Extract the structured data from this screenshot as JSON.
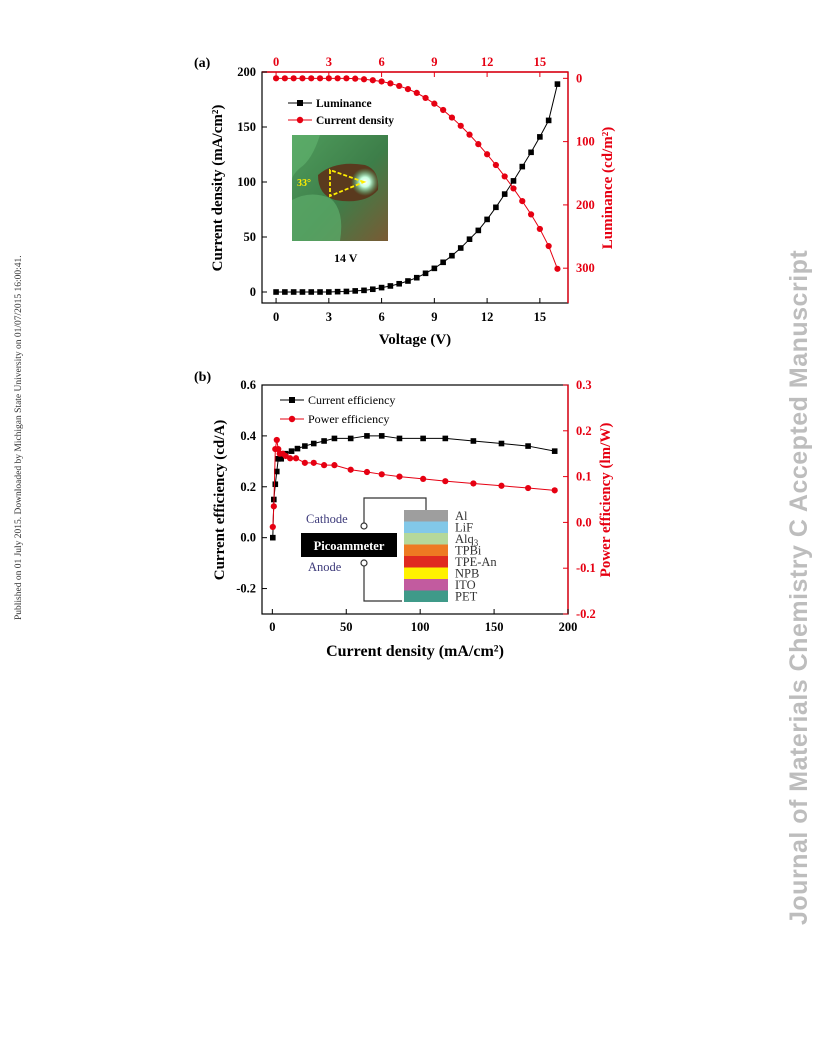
{
  "side_note": "Published on 01 July 2015. Downloaded by Michigan State University on 01/07/2015 16:00:41.",
  "watermark": "Journal of Materials Chemistry C Accepted Manuscript",
  "colors": {
    "black_series": "#000000",
    "red_series": "#e60012"
  },
  "chart_data": [
    {
      "panel": "(a)",
      "type": "scatter",
      "xlabel": "Voltage (V)",
      "ylabel_left": "Current density (mA/cm²)",
      "ylabel_right": "Luminance (cd/m²)",
      "x_ticks": [
        "0",
        "3",
        "6",
        "9",
        "12",
        "15"
      ],
      "x_top_ticks": [
        "0",
        "3",
        "6",
        "9",
        "12",
        "15"
      ],
      "y_left_ticks": [
        "0",
        "50",
        "100",
        "150",
        "200"
      ],
      "y_right_ticks": [
        "0",
        "100",
        "200",
        "300"
      ],
      "xlim": [
        -0.8,
        16.6
      ],
      "ylim_left": [
        -10,
        200
      ],
      "ylim_right": [
        -10,
        355
      ],
      "legend": [
        "Luminance",
        "Current density"
      ],
      "inset_angle_label": "33°",
      "inset_caption": "14 V",
      "series": [
        {
          "marker": "square",
          "color": "#000000",
          "axis": "left",
          "x": [
            0,
            0.5,
            1,
            1.5,
            2,
            2.5,
            3,
            3.5,
            4,
            4.5,
            5,
            5.5,
            6,
            6.5,
            7,
            7.5,
            8,
            8.5,
            9,
            9.5,
            10,
            10.5,
            11,
            11.5,
            12,
            12.5,
            13,
            13.5,
            14,
            14.5,
            15,
            15.5,
            16
          ],
          "y": [
            0,
            0,
            0,
            0,
            0,
            0,
            0,
            0.3,
            0.5,
            1,
            1.5,
            2.5,
            4,
            5.5,
            7.5,
            10,
            13,
            17,
            21.5,
            27,
            33,
            40,
            48,
            56,
            66,
            77,
            89,
            101,
            114,
            127,
            141,
            156,
            189
          ]
        },
        {
          "marker": "circle",
          "color": "#e60012",
          "axis": "right",
          "x": [
            0,
            0.5,
            1,
            1.5,
            2,
            2.5,
            3,
            3.5,
            4,
            4.5,
            5,
            5.5,
            6,
            6.5,
            7,
            7.5,
            8,
            8.5,
            9,
            9.5,
            10,
            10.5,
            11,
            11.5,
            12,
            12.5,
            13,
            13.5,
            14,
            14.5,
            15,
            15.5,
            16
          ],
          "y": [
            0,
            0,
            0,
            0,
            0,
            0,
            0,
            0,
            0,
            0.5,
            1.5,
            3,
            5,
            8,
            12,
            17,
            23,
            31,
            40,
            50,
            62,
            75,
            89,
            104,
            120,
            137,
            155,
            174,
            194,
            215,
            238,
            265,
            301
          ]
        }
      ]
    },
    {
      "panel": "(b)",
      "type": "line",
      "xlabel": "Current density (mA/cm²)",
      "ylabel_left": "Current efficiency (cd/A)",
      "ylabel_right": "Power efficiency (lm/W)",
      "x_ticks": [
        "0",
        "50",
        "100",
        "150",
        "200"
      ],
      "y_left_ticks": [
        "-0.2",
        "0.0",
        "0.2",
        "0.4",
        "0.6"
      ],
      "y_right_ticks": [
        "-0.2",
        "-0.1",
        "0.0",
        "0.1",
        "0.2",
        "0.3"
      ],
      "xlim": [
        -7,
        200
      ],
      "ylim_left": [
        -0.3,
        0.6
      ],
      "ylim_right": [
        -0.2,
        0.3
      ],
      "legend": [
        "Current efficiency",
        "Power efficiency"
      ],
      "series": [
        {
          "marker": "square",
          "color": "#000000",
          "axis": "left",
          "x": [
            0.3,
            1,
            2,
            3,
            4,
            6,
            9,
            13,
            17,
            22,
            28,
            35,
            42,
            53,
            64,
            74,
            86,
            102,
            117,
            136,
            155,
            173,
            191
          ],
          "y": [
            0.0,
            0.15,
            0.21,
            0.26,
            0.31,
            0.31,
            0.33,
            0.34,
            0.35,
            0.36,
            0.37,
            0.38,
            0.39,
            0.39,
            0.4,
            0.4,
            0.39,
            0.39,
            0.39,
            0.38,
            0.37,
            0.36,
            0.34
          ]
        },
        {
          "marker": "circle",
          "color": "#e60012",
          "axis": "right",
          "x": [
            0.3,
            1,
            2,
            3,
            4,
            5,
            7,
            9,
            12,
            16,
            22,
            28,
            35,
            42,
            53,
            64,
            74,
            86,
            102,
            117,
            136,
            155,
            173,
            191
          ],
          "y": [
            -0.01,
            0.035,
            0.16,
            0.18,
            0.16,
            0.15,
            0.15,
            0.145,
            0.14,
            0.14,
            0.13,
            0.13,
            0.125,
            0.125,
            0.115,
            0.11,
            0.105,
            0.1,
            0.095,
            0.09,
            0.085,
            0.08,
            0.075,
            0.07
          ]
        }
      ]
    }
  ],
  "device_diagram": {
    "cathode_label": "Cathode",
    "anode_label": "Anode",
    "meter_label": "Picoammeter",
    "layers": [
      {
        "name": "Al",
        "color": "#9e9e9e"
      },
      {
        "name": "LiF",
        "color": "#82c8e8"
      },
      {
        "name": "Alq3",
        "color": "#b5d89a"
      },
      {
        "name": "TPBi",
        "color": "#ee7a22"
      },
      {
        "name": "TPE-An",
        "color": "#e02a20"
      },
      {
        "name": "NPB",
        "color": "#fff200"
      },
      {
        "name": "ITO",
        "color": "#c25b9f"
      },
      {
        "name": "PET",
        "color": "#3f9a89"
      }
    ]
  }
}
